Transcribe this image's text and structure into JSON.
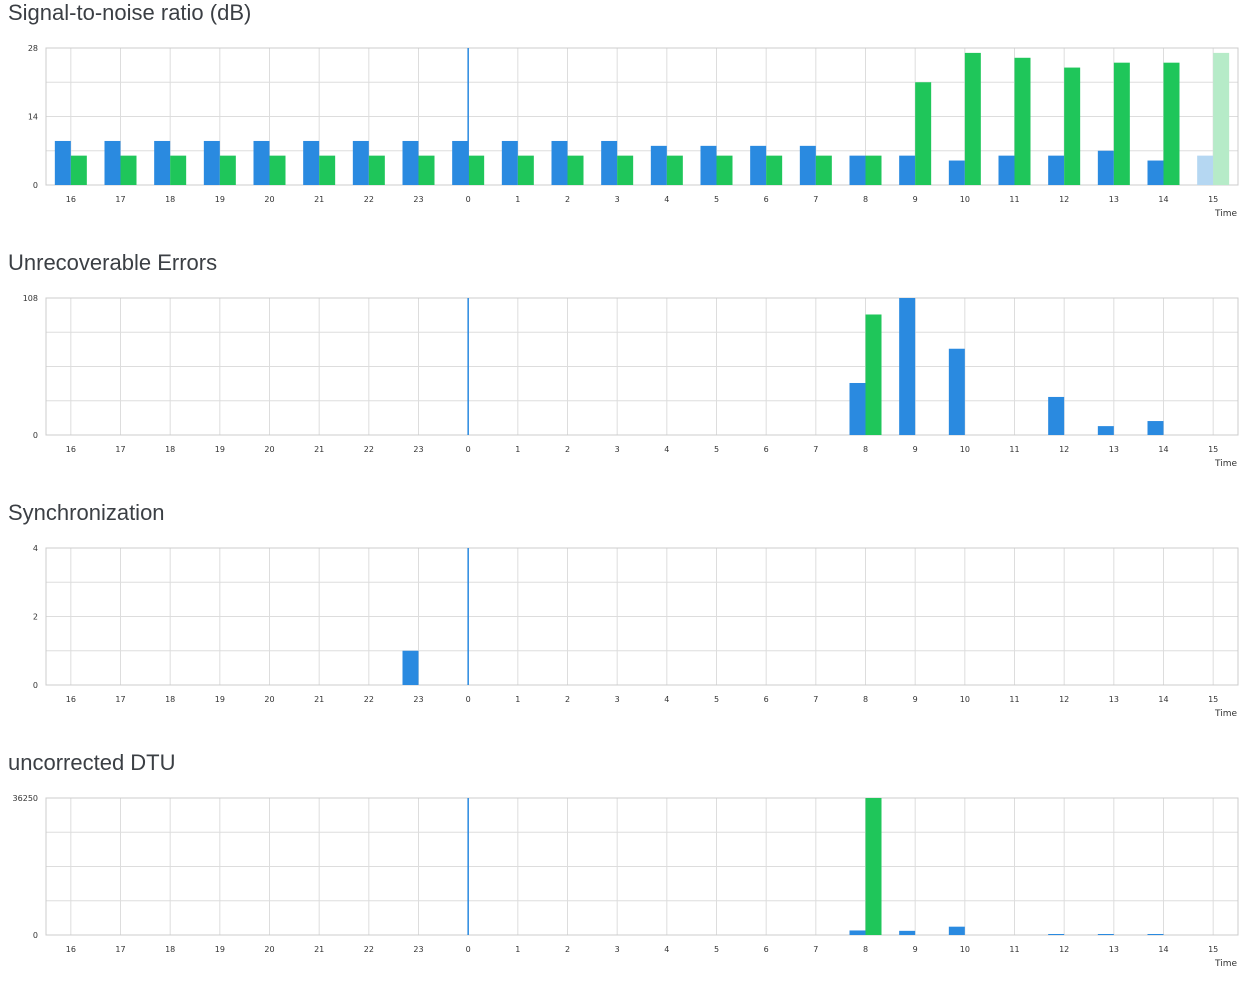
{
  "colors": {
    "blue": "#2a8ae0",
    "green": "#1fc65a",
    "blue_faded": "#b5d7f2",
    "green_faded": "#b6ebc8",
    "grid": "#dddddd",
    "marker": "#2a8ae0"
  },
  "chart_data": [
    {
      "type": "bar",
      "title": "Signal-to-noise ratio (dB)",
      "xlabel": "Time",
      "ylabel": "",
      "ylim": [
        0,
        28
      ],
      "yticks": [
        "0",
        "14",
        "28"
      ],
      "categories": [
        "16",
        "17",
        "18",
        "19",
        "20",
        "21",
        "22",
        "23",
        "0",
        "1",
        "2",
        "3",
        "4",
        "5",
        "6",
        "7",
        "8",
        "9",
        "10",
        "11",
        "12",
        "13",
        "14",
        "15"
      ],
      "current_time_marker": "0",
      "faded_category": "15",
      "grid": true,
      "series": [
        {
          "color": "blue",
          "values": [
            9,
            9,
            9,
            9,
            9,
            9,
            9,
            9,
            9,
            9,
            9,
            9,
            8,
            8,
            8,
            8,
            6,
            6,
            5,
            6,
            6,
            7,
            5,
            6
          ]
        },
        {
          "color": "green",
          "values": [
            6,
            6,
            6,
            6,
            6,
            6,
            6,
            6,
            6,
            6,
            6,
            6,
            6,
            6,
            6,
            6,
            6,
            21,
            27,
            26,
            24,
            25,
            25,
            27
          ]
        }
      ]
    },
    {
      "type": "bar",
      "title": "Unrecoverable Errors",
      "xlabel": "Time",
      "ylabel": "",
      "ylim": [
        0,
        108
      ],
      "yticks": [
        "0",
        "108"
      ],
      "categories": [
        "16",
        "17",
        "18",
        "19",
        "20",
        "21",
        "22",
        "23",
        "0",
        "1",
        "2",
        "3",
        "4",
        "5",
        "6",
        "7",
        "8",
        "9",
        "10",
        "11",
        "12",
        "13",
        "14",
        "15"
      ],
      "current_time_marker": "0",
      "faded_category": "15",
      "grid": true,
      "series": [
        {
          "color": "blue",
          "values": [
            0,
            0,
            0,
            0,
            0,
            0,
            0,
            0,
            0,
            0,
            0,
            0,
            0,
            0,
            0,
            0,
            41,
            108,
            68,
            0,
            30,
            7,
            11,
            0
          ]
        },
        {
          "color": "green",
          "values": [
            0,
            0,
            0,
            0,
            0,
            0,
            0,
            0,
            0,
            0,
            0,
            0,
            0,
            0,
            0,
            0,
            95,
            0,
            0,
            0,
            0,
            0,
            0,
            0
          ]
        }
      ]
    },
    {
      "type": "bar",
      "title": "Synchronization",
      "xlabel": "Time",
      "ylabel": "",
      "ylim": [
        0,
        4
      ],
      "yticks": [
        "0",
        "2",
        "4"
      ],
      "categories": [
        "16",
        "17",
        "18",
        "19",
        "20",
        "21",
        "22",
        "23",
        "0",
        "1",
        "2",
        "3",
        "4",
        "5",
        "6",
        "7",
        "8",
        "9",
        "10",
        "11",
        "12",
        "13",
        "14",
        "15"
      ],
      "current_time_marker": "0",
      "faded_category": "15",
      "grid": true,
      "series": [
        {
          "color": "blue",
          "values": [
            0,
            0,
            0,
            0,
            0,
            0,
            0,
            1,
            0,
            0,
            0,
            0,
            0,
            0,
            0,
            0,
            0,
            0,
            0,
            0,
            0,
            0,
            0,
            0
          ]
        }
      ]
    },
    {
      "type": "bar",
      "title": "uncorrected DTU",
      "xlabel": "Time",
      "ylabel": "",
      "ylim": [
        0,
        36250
      ],
      "yticks": [
        "0",
        "36250"
      ],
      "categories": [
        "16",
        "17",
        "18",
        "19",
        "20",
        "21",
        "22",
        "23",
        "0",
        "1",
        "2",
        "3",
        "4",
        "5",
        "6",
        "7",
        "8",
        "9",
        "10",
        "11",
        "12",
        "13",
        "14",
        "15"
      ],
      "current_time_marker": "0",
      "faded_category": "15",
      "grid": true,
      "series": [
        {
          "color": "blue",
          "values": [
            0,
            0,
            0,
            0,
            0,
            0,
            0,
            0,
            0,
            0,
            0,
            0,
            0,
            0,
            0,
            0,
            1200,
            1100,
            2200,
            0,
            200,
            100,
            100,
            0
          ]
        },
        {
          "color": "green",
          "values": [
            0,
            0,
            0,
            0,
            0,
            0,
            0,
            0,
            0,
            0,
            0,
            0,
            0,
            0,
            0,
            0,
            36250,
            0,
            0,
            0,
            0,
            0,
            0,
            0
          ]
        }
      ]
    }
  ]
}
